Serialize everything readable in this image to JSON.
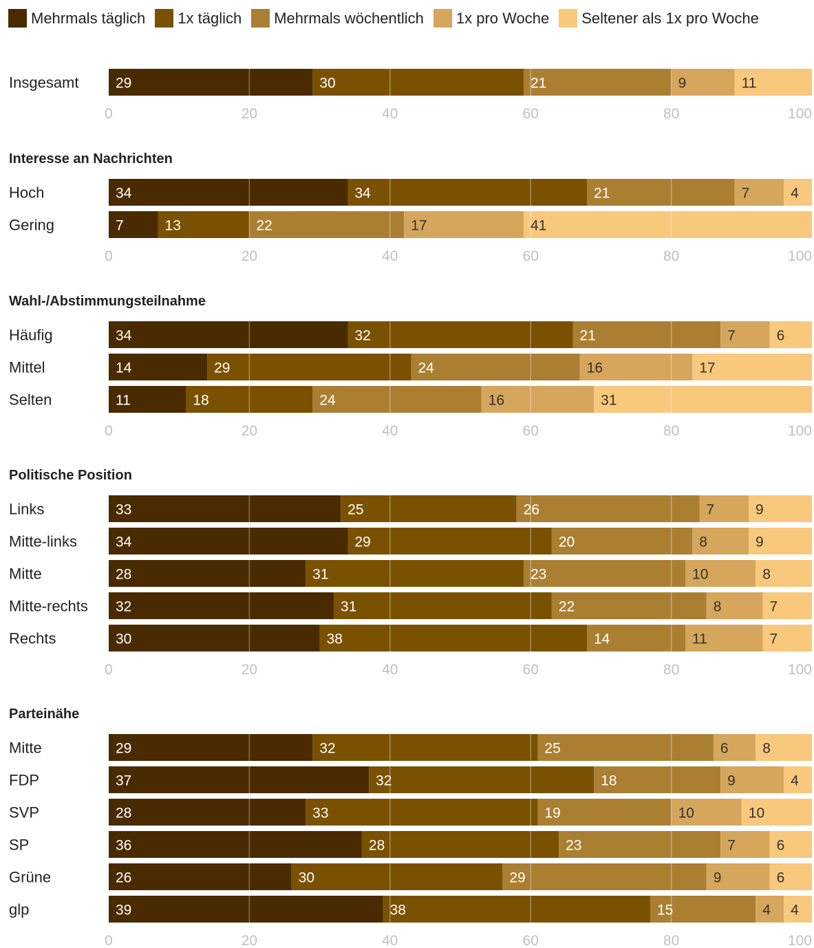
{
  "chart_data": {
    "type": "bar",
    "orientation": "horizontal",
    "stacked": true,
    "xlim": [
      0,
      100
    ],
    "xticks": [
      "0",
      "20",
      "40",
      "60",
      "80",
      "100"
    ],
    "grid": true,
    "legend_position": "top",
    "series": [
      {
        "name": "Mehrmals täglich",
        "color": "#4a2a00"
      },
      {
        "name": "1x täglich",
        "color": "#7a5100"
      },
      {
        "name": "Mehrmals wöchentlich",
        "color": "#ab7f32"
      },
      {
        "name": "1x pro Woche",
        "color": "#d5a65b"
      },
      {
        "name": "Seltener als 1x pro Woche",
        "color": "#f8c87c"
      }
    ],
    "groups": [
      {
        "title": "",
        "rows": [
          {
            "label": "Insgesamt",
            "values": [
              29,
              30,
              21,
              9,
              11
            ]
          }
        ]
      },
      {
        "title": "Interesse an Nachrichten",
        "rows": [
          {
            "label": "Hoch",
            "values": [
              34,
              34,
              21,
              7,
              4
            ]
          },
          {
            "label": "Gering",
            "values": [
              7,
              13,
              22,
              17,
              41
            ]
          }
        ]
      },
      {
        "title": "Wahl-/Abstimmungsteilnahme",
        "rows": [
          {
            "label": "Häufig",
            "values": [
              34,
              32,
              21,
              7,
              6
            ]
          },
          {
            "label": "Mittel",
            "values": [
              14,
              29,
              24,
              16,
              17
            ]
          },
          {
            "label": "Selten",
            "values": [
              11,
              18,
              24,
              16,
              31
            ]
          }
        ]
      },
      {
        "title": "Politische Position",
        "rows": [
          {
            "label": "Links",
            "values": [
              33,
              25,
              26,
              7,
              9
            ]
          },
          {
            "label": "Mitte-links",
            "values": [
              34,
              29,
              20,
              8,
              9
            ]
          },
          {
            "label": "Mitte",
            "values": [
              28,
              31,
              23,
              10,
              8
            ]
          },
          {
            "label": "Mitte-rechts",
            "values": [
              32,
              31,
              22,
              8,
              7
            ]
          },
          {
            "label": "Rechts",
            "values": [
              30,
              38,
              14,
              11,
              7
            ]
          }
        ]
      },
      {
        "title": "Parteinähe",
        "rows": [
          {
            "label": "Mitte",
            "values": [
              29,
              32,
              25,
              6,
              8
            ]
          },
          {
            "label": "FDP",
            "values": [
              37,
              32,
              18,
              9,
              4
            ]
          },
          {
            "label": "SVP",
            "values": [
              28,
              33,
              19,
              10,
              10
            ]
          },
          {
            "label": "SP",
            "values": [
              36,
              28,
              23,
              7,
              6
            ]
          },
          {
            "label": "Grüne",
            "values": [
              26,
              30,
              29,
              9,
              6
            ]
          },
          {
            "label": "glp",
            "values": [
              39,
              38,
              15,
              4,
              4
            ]
          }
        ]
      }
    ]
  }
}
